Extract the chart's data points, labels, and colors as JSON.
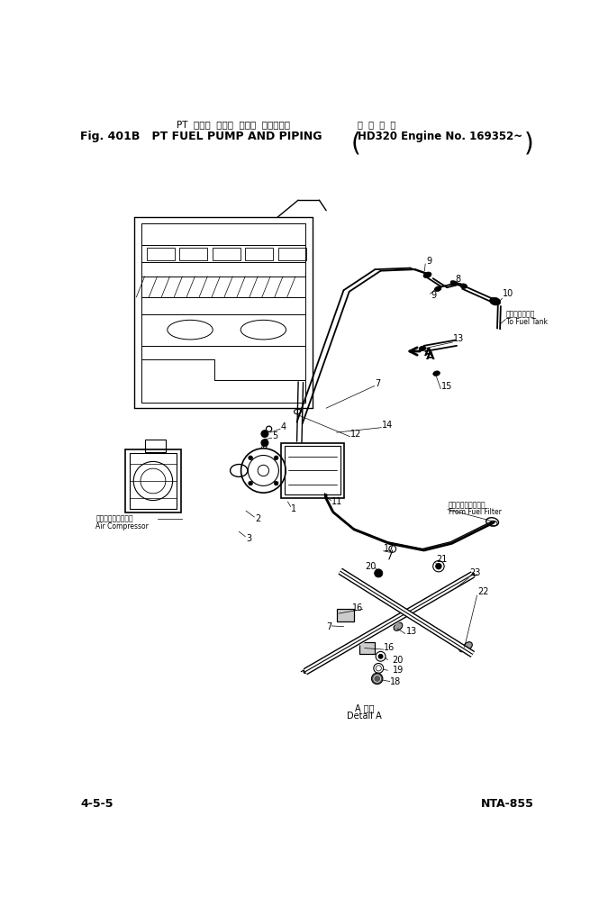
{
  "title_jp": "PT  フェル  ポンプ  および  パイピング",
  "title_en": "Fig. 401B   PT FUEL PUMP AND PIPING",
  "title_right_jp": "適  用  号  機",
  "title_right_en": "HD320 Engine No. 169352~",
  "footer_left": "4-5-5",
  "footer_right": "NTA-855",
  "bg_color": "#ffffff",
  "text_color": "#000000",
  "fig_width": 6.65,
  "fig_height": 10.17,
  "dpi": 100
}
